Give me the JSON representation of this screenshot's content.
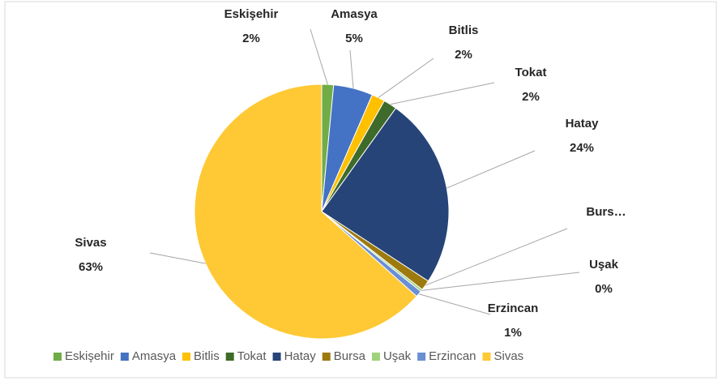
{
  "chart_data": {
    "type": "pie",
    "categories": [
      "Eskişehir",
      "Amasya",
      "Bitlis",
      "Tokat",
      "Hatay",
      "Bursa",
      "Uşak",
      "Erzincan",
      "Sivas"
    ],
    "values": [
      1.5,
      5,
      1.7,
      1.7,
      24.3,
      1.3,
      0.3,
      0.8,
      63.4
    ],
    "value_labels": [
      "2%",
      "5%",
      "2%",
      "2%",
      "24%",
      null,
      "0%",
      "1%",
      "63%"
    ],
    "data_label_names": [
      "Eskişehir",
      "Amasya",
      "Bitlis",
      "Tokat",
      "Hatay",
      "Burs…",
      "Uşak",
      "Erzincan",
      "Sivas"
    ],
    "colors": [
      "#70ad47",
      "#4472c4",
      "#ffc000",
      "#3f6b2a",
      "#264478",
      "#9c7a0e",
      "#9fd27c",
      "#6b8fd4",
      "#ffc935"
    ],
    "legend": "bottom"
  }
}
